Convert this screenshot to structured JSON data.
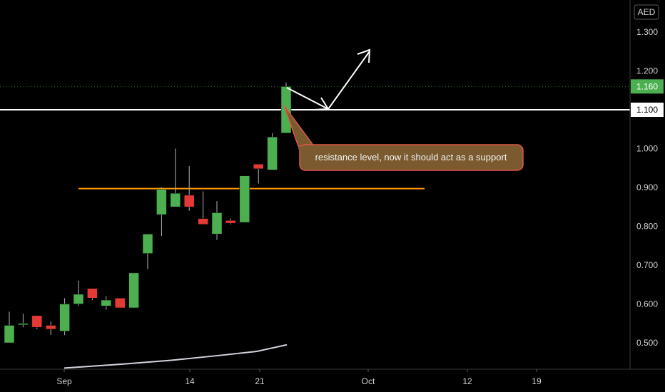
{
  "chart_data": {
    "type": "candlestick",
    "currency": "AED",
    "x_tick_labels": [
      "Sep",
      "14",
      "21",
      "Oct",
      "12",
      "19"
    ],
    "ylim": [
      0.43,
      1.335
    ],
    "y_ticks": [
      "0.500",
      "0.600",
      "0.700",
      "0.800",
      "0.900",
      "1.000",
      "1.100",
      "1.200",
      "1.300"
    ],
    "grid": false,
    "candles": [
      {
        "open": 0.5,
        "high": 0.58,
        "low": 0.5,
        "close": 0.545
      },
      {
        "open": 0.548,
        "high": 0.575,
        "low": 0.54,
        "close": 0.55
      },
      {
        "open": 0.57,
        "high": 0.57,
        "low": 0.535,
        "close": 0.54
      },
      {
        "open": 0.545,
        "high": 0.555,
        "low": 0.52,
        "close": 0.535
      },
      {
        "open": 0.53,
        "high": 0.615,
        "low": 0.52,
        "close": 0.6
      },
      {
        "open": 0.6,
        "high": 0.66,
        "low": 0.595,
        "close": 0.625
      },
      {
        "open": 0.64,
        "high": 0.64,
        "low": 0.61,
        "close": 0.615
      },
      {
        "open": 0.595,
        "high": 0.62,
        "low": 0.585,
        "close": 0.61
      },
      {
        "open": 0.615,
        "high": 0.615,
        "low": 0.59,
        "close": 0.59
      },
      {
        "open": 0.59,
        "high": 0.68,
        "low": 0.59,
        "close": 0.68
      },
      {
        "open": 0.73,
        "high": 0.78,
        "low": 0.69,
        "close": 0.78
      },
      {
        "open": 0.83,
        "high": 0.9,
        "low": 0.775,
        "close": 0.895
      },
      {
        "open": 0.85,
        "high": 1.0,
        "low": 0.85,
        "close": 0.885
      },
      {
        "open": 0.88,
        "high": 0.955,
        "low": 0.84,
        "close": 0.85
      },
      {
        "open": 0.82,
        "high": 0.89,
        "low": 0.805,
        "close": 0.805
      },
      {
        "open": 0.78,
        "high": 0.865,
        "low": 0.765,
        "close": 0.835
      },
      {
        "open": 0.815,
        "high": 0.82,
        "low": 0.805,
        "close": 0.808
      },
      {
        "open": 0.81,
        "high": 0.93,
        "low": 0.81,
        "close": 0.93
      },
      {
        "open": 0.96,
        "high": 0.96,
        "low": 0.91,
        "close": 0.948
      },
      {
        "open": 0.945,
        "high": 1.04,
        "low": 0.945,
        "close": 1.03
      },
      {
        "open": 1.04,
        "high": 1.17,
        "low": 1.04,
        "close": 1.16
      }
    ],
    "moving_average": [
      0.435,
      0.445,
      0.455,
      0.468,
      0.478,
      0.495
    ],
    "current_price": "1.160",
    "levels": [
      {
        "value": 1.1,
        "label": "1.100",
        "color": "#ffffff"
      },
      {
        "value": 0.897,
        "label": "",
        "color": "#ff9800"
      }
    ],
    "annotation": "resistance level, now it should act as a support",
    "colors": {
      "up": "#4caf50",
      "down": "#e53935",
      "wick": "#b2b5be",
      "ma": "#d1d4dc",
      "annotation_bg": "#7a5a2e",
      "annotation_border": "#e0564b",
      "price_dotted": "#2e7d32"
    }
  }
}
